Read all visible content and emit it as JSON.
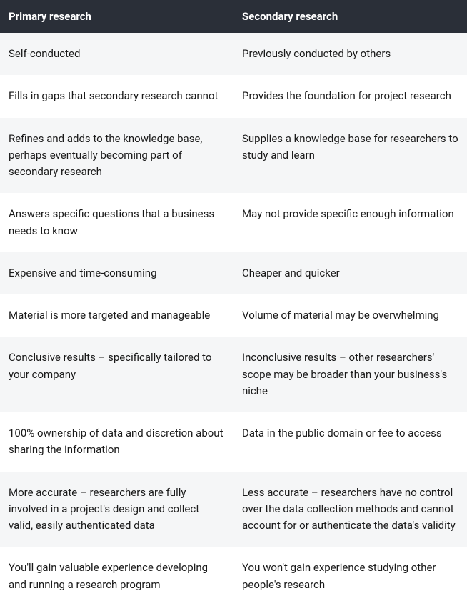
{
  "table": {
    "columns": [
      "Primary research",
      "Secondary research"
    ],
    "rows": [
      [
        "Self-conducted",
        "Previously conducted by others"
      ],
      [
        "Fills in gaps that secondary research cannot",
        "Provides the foundation for project research"
      ],
      [
        "Refines and adds to the knowledge base, perhaps eventually becoming part of secondary research",
        "Supplies a knowledge base for researchers to study and learn"
      ],
      [
        "Answers specific questions that a business needs to know",
        "May not provide specific enough information"
      ],
      [
        "Expensive and time-consuming",
        "Cheaper and quicker"
      ],
      [
        "Material is more targeted and manageable",
        "Volume of material may be overwhelming"
      ],
      [
        "Conclusive results – specifically tailored to your company",
        "Inconclusive results – other researchers' scope may be broader than your business's niche"
      ],
      [
        "100% ownership of data and discretion about sharing the information",
        "Data in the public domain or fee to access"
      ],
      [
        "More accurate – researchers are fully involved in a project's design and collect valid, easily authenticated data",
        "Less accurate – researchers have no control over the data collection methods and cannot account for or authenticate the data's validity"
      ],
      [
        "You'll gain valuable experience developing and running a research program",
        "You won't gain experience studying other people's research"
      ]
    ],
    "header_bg": "#2a2f38",
    "header_text_color": "#ffffff",
    "row_even_bg": "#ffffff",
    "row_odd_bg": "#f5f6f7",
    "cell_text_color": "#1a1a1a",
    "font_size_header": 15,
    "font_size_body": 15
  }
}
